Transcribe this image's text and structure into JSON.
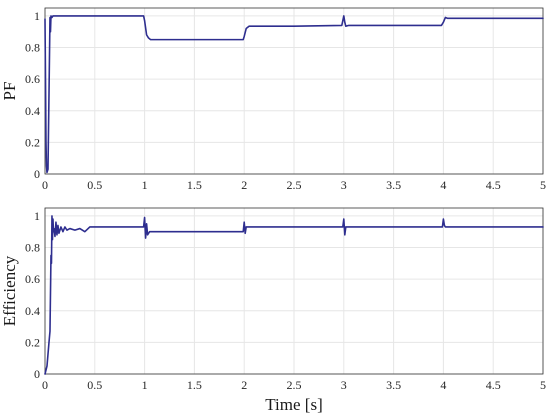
{
  "chart_data": [
    {
      "type": "line",
      "title": "",
      "xlabel": "",
      "ylabel": "PF",
      "xlim": [
        0,
        5
      ],
      "ylim": [
        0,
        1.05
      ],
      "xticks": [
        "0",
        "0.5",
        "1",
        "1.5",
        "2",
        "2.5",
        "3",
        "3.5",
        "4",
        "4.5",
        "5"
      ],
      "yticks": [
        "0",
        "0.2",
        "0.4",
        "0.6",
        "0.8",
        "1"
      ],
      "grid": true,
      "color": "#2e2e8f",
      "series": [
        {
          "x": [
            0,
            0.005,
            0.01,
            0.015,
            0.02,
            0.03,
            0.04,
            0.05,
            0.055,
            0.06,
            0.07,
            0.08,
            0.1,
            0.5,
            0.99,
            1.0,
            1.02,
            1.04,
            1.06,
            1.1,
            1.5,
            1.99,
            2.0,
            2.02,
            2.05,
            2.1,
            2.5,
            2.98,
            3.0,
            3.01,
            3.02,
            3.05,
            3.5,
            3.98,
            4.0,
            4.02,
            4.04,
            4.1,
            4.5,
            5.0
          ],
          "y": [
            0.98,
            0.6,
            0.2,
            0.05,
            0.01,
            0.03,
            0.5,
            0.99,
            0.9,
            1.0,
            0.99,
            1.0,
            1.0,
            1.0,
            1.0,
            0.97,
            0.88,
            0.86,
            0.85,
            0.85,
            0.85,
            0.85,
            0.87,
            0.92,
            0.935,
            0.935,
            0.935,
            0.94,
            1.0,
            0.96,
            0.935,
            0.94,
            0.94,
            0.94,
            0.96,
            0.99,
            0.985,
            0.985,
            0.985,
            0.985
          ]
        }
      ]
    },
    {
      "type": "line",
      "title": "",
      "xlabel": "Time [s]",
      "ylabel": "Efficiency",
      "xlim": [
        0,
        5
      ],
      "ylim": [
        0,
        1.05
      ],
      "xticks": [
        "0",
        "0.5",
        "1",
        "1.5",
        "2",
        "2.5",
        "3",
        "3.5",
        "4",
        "4.5",
        "5"
      ],
      "yticks": [
        "0",
        "0.2",
        "0.4",
        "0.6",
        "0.8",
        "1"
      ],
      "grid": true,
      "color": "#2e2e8f",
      "series": [
        {
          "x": [
            0,
            0.02,
            0.04,
            0.05,
            0.06,
            0.065,
            0.07,
            0.075,
            0.08,
            0.085,
            0.09,
            0.1,
            0.11,
            0.12,
            0.13,
            0.14,
            0.16,
            0.18,
            0.2,
            0.22,
            0.25,
            0.3,
            0.35,
            0.4,
            0.45,
            0.5,
            0.7,
            0.9,
            0.99,
            1.0,
            1.01,
            1.02,
            1.03,
            1.05,
            1.1,
            1.3,
            1.5,
            1.7,
            1.9,
            1.99,
            2.0,
            2.01,
            2.02,
            2.05,
            2.3,
            2.6,
            2.9,
            2.99,
            3.0,
            3.01,
            3.02,
            3.05,
            3.3,
            3.6,
            3.9,
            3.99,
            4.0,
            4.01,
            4.02,
            4.05,
            4.3,
            4.6,
            5.0
          ],
          "y": [
            0.0,
            0.05,
            0.2,
            0.27,
            0.75,
            0.7,
            1.0,
            0.85,
            0.98,
            0.9,
            0.92,
            0.87,
            0.96,
            0.88,
            0.94,
            0.89,
            0.93,
            0.9,
            0.93,
            0.91,
            0.92,
            0.91,
            0.92,
            0.9,
            0.93,
            0.93,
            0.93,
            0.93,
            0.93,
            0.99,
            0.86,
            0.95,
            0.88,
            0.9,
            0.9,
            0.9,
            0.9,
            0.9,
            0.9,
            0.9,
            0.96,
            0.89,
            0.93,
            0.93,
            0.93,
            0.93,
            0.93,
            0.93,
            0.98,
            0.88,
            0.93,
            0.93,
            0.93,
            0.93,
            0.93,
            0.93,
            0.98,
            0.94,
            0.93,
            0.93,
            0.93,
            0.93,
            0.93
          ]
        }
      ]
    }
  ]
}
